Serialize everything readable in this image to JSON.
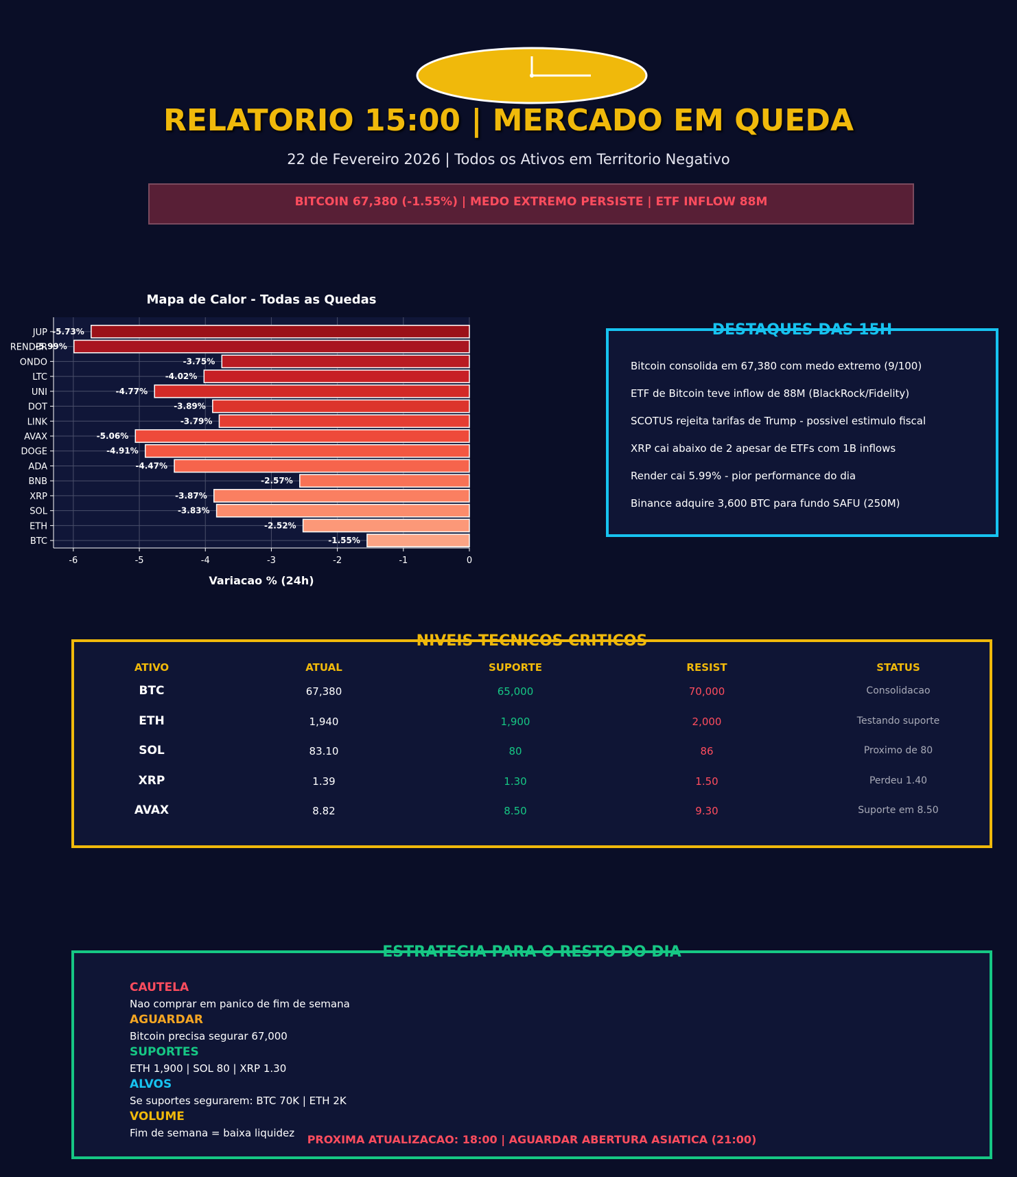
{
  "header": {
    "title": "RELATORIO 15:00 | MERCADO EM QUEDA",
    "subtitle": "22 de Fevereiro 2026 | Todos os Ativos em Territorio Negativo",
    "banner": "BITCOIN 67,380 (-1.55%) | MEDO EXTREMO PERSISTE | ETF INFLOW 88M",
    "clock_icon": "clock-icon",
    "colors": {
      "accent": "#f0b90b",
      "alert": "#ff4d5e",
      "background": "#0a0e27"
    }
  },
  "chart_data": {
    "type": "bar",
    "orientation": "horizontal",
    "title": "Mapa de Calor - Todas as Quedas",
    "xlabel": "Variacao % (24h)",
    "ylabel": "",
    "xlim": [
      -6.3,
      0
    ],
    "xticks": [
      "-6",
      "-5",
      "-4",
      "-3",
      "-2",
      "-1",
      "0"
    ],
    "grid": true,
    "categories": [
      "JUP",
      "RENDER",
      "ONDO",
      "LTC",
      "UNI",
      "DOT",
      "LINK",
      "AVAX",
      "DOGE",
      "ADA",
      "BNB",
      "XRP",
      "SOL",
      "ETH",
      "BTC"
    ],
    "values": [
      -5.73,
      -5.99,
      -3.75,
      -4.02,
      -4.77,
      -3.89,
      -3.79,
      -5.06,
      -4.91,
      -4.47,
      -2.57,
      -3.87,
      -3.83,
      -2.52,
      -1.55
    ],
    "labels": [
      "-5.73%",
      "-5.99%",
      "-3.75%",
      "-4.02%",
      "-4.77%",
      "-3.89%",
      "-3.79%",
      "-5.06%",
      "-4.91%",
      "-4.47%",
      "-2.57%",
      "-3.87%",
      "-3.83%",
      "-2.52%",
      "-1.55%"
    ],
    "colors": [
      "#9b1119",
      "#a91520",
      "#b91b22",
      "#c72025",
      "#d22a27",
      "#dc342c",
      "#e53e33",
      "#ee4a3a",
      "#f35742",
      "#f6644c",
      "#f87256",
      "#fa7f61",
      "#fb8c6c",
      "#fc9878",
      "#fca485"
    ]
  },
  "destaques": {
    "title": "DESTAQUES DAS 15H",
    "items": [
      "Bitcoin consolida em 67,380 com medo extremo (9/100)",
      "ETF de Bitcoin teve inflow de 88M (BlackRock/Fidelity)",
      "SCOTUS rejeita tarifas de Trump - possivel estimulo fiscal",
      "XRP cai abaixo de 2 apesar de ETFs com 1B inflows",
      "Render cai 5.99% - pior performance do dia",
      "Binance adquire 3,600 BTC para fundo SAFU (250M)"
    ]
  },
  "niveis": {
    "title": "NIVEIS TECNICOS CRITICOS",
    "columns": [
      "ATIVO",
      "ATUAL",
      "SUPORTE",
      "RESIST",
      "STATUS"
    ],
    "rows": [
      [
        "BTC",
        "67,380",
        "65,000",
        "70,000",
        "Consolidacao"
      ],
      [
        "ETH",
        "1,940",
        "1,900",
        "2,000",
        "Testando suporte"
      ],
      [
        "SOL",
        "83.10",
        "80",
        "86",
        "Proximo de 80"
      ],
      [
        "XRP",
        "1.39",
        "1.30",
        "1.50",
        "Perdeu 1.40"
      ],
      [
        "AVAX",
        "8.82",
        "8.50",
        "9.30",
        "Suporte em 8.50"
      ]
    ]
  },
  "estrategia": {
    "title": "ESTRATEGIA PARA O RESTO DO DIA",
    "items": [
      {
        "head": "CAUTELA",
        "text": "Nao comprar em panico de fim de semana",
        "color": "#ff4d5e"
      },
      {
        "head": "AGUARDAR",
        "text": "Bitcoin precisa segurar 67,000",
        "color": "#f5a623"
      },
      {
        "head": "SUPORTES",
        "text": "ETH 1,900 | SOL 80 | XRP 1.30",
        "color": "#16c784"
      },
      {
        "head": "ALVOS",
        "text": "Se suportes segurarem: BTC 70K | ETH 2K",
        "color": "#17c3f0"
      },
      {
        "head": "VOLUME",
        "text": "Fim de semana = baixa liquidez",
        "color": "#f0b90b"
      }
    ],
    "next_update": "PROXIMA ATUALIZACAO: 18:00 | AGUARDAR ABERTURA ASIATICA (21:00)"
  }
}
